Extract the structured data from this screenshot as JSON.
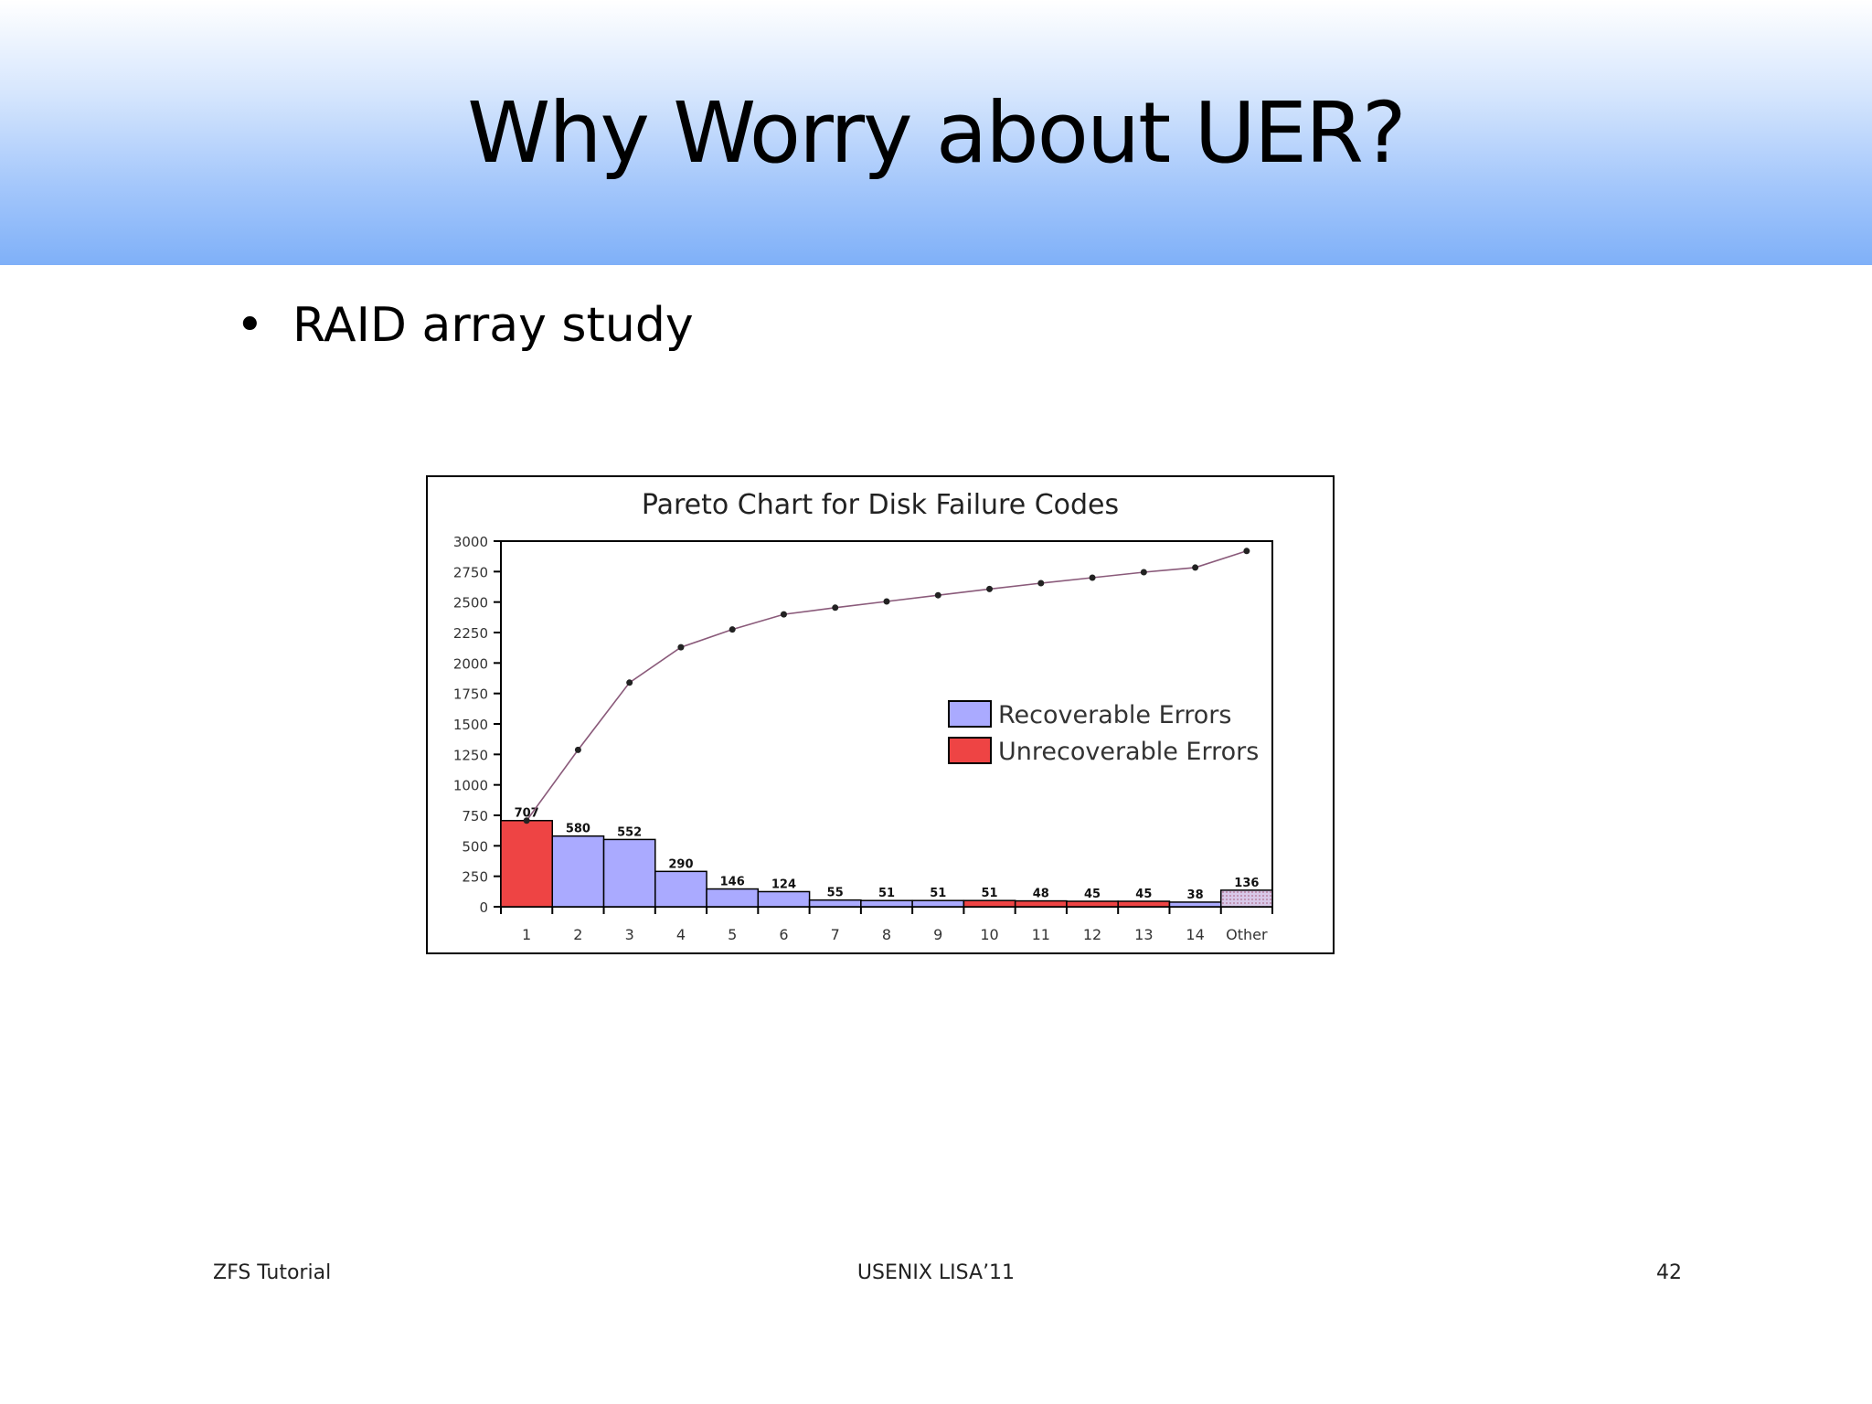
{
  "slide": {
    "title": "Why Worry about UER?",
    "bullets": [
      "RAID array study"
    ],
    "footer_left": "ZFS Tutorial",
    "footer_center": "USENIX LISA’11",
    "footer_right": "42"
  },
  "colors": {
    "recoverable": "#aaaaff",
    "unrecoverable": "#ee4444",
    "other": "#d8c8e8",
    "cumulative_line": "#8a5a7a"
  },
  "chart_data": {
    "type": "bar",
    "title": "Pareto Chart for Disk Failure Codes",
    "xlabel": "",
    "ylabel": "",
    "ylim": [
      0,
      3000
    ],
    "yticks": [
      0,
      250,
      500,
      750,
      1000,
      1250,
      1500,
      1750,
      2000,
      2250,
      2500,
      2750,
      3000
    ],
    "categories": [
      "1",
      "2",
      "3",
      "4",
      "5",
      "6",
      "7",
      "8",
      "9",
      "10",
      "11",
      "12",
      "13",
      "14",
      "Other"
    ],
    "values": [
      707,
      580,
      552,
      290,
      146,
      124,
      55,
      51,
      51,
      51,
      48,
      45,
      45,
      38,
      136
    ],
    "value_labels": [
      "707",
      "580",
      "552",
      "290",
      "146",
      "124",
      "55",
      "51",
      "51",
      "51",
      "48",
      "45",
      "45",
      "38",
      "136"
    ],
    "error_type": [
      "unrecoverable",
      "recoverable",
      "recoverable",
      "recoverable",
      "recoverable",
      "recoverable",
      "recoverable",
      "recoverable",
      "recoverable",
      "unrecoverable",
      "unrecoverable",
      "unrecoverable",
      "unrecoverable",
      "recoverable",
      "other"
    ],
    "cumulative": [
      707,
      1287,
      1839,
      2129,
      2275,
      2399,
      2454,
      2505,
      2556,
      2607,
      2655,
      2700,
      2745,
      2783,
      2919
    ],
    "legend": [
      {
        "name": "Recoverable Errors",
        "type": "recoverable"
      },
      {
        "name": "Unrecoverable Errors",
        "type": "unrecoverable"
      }
    ],
    "legend_position": "right",
    "grid": false
  }
}
